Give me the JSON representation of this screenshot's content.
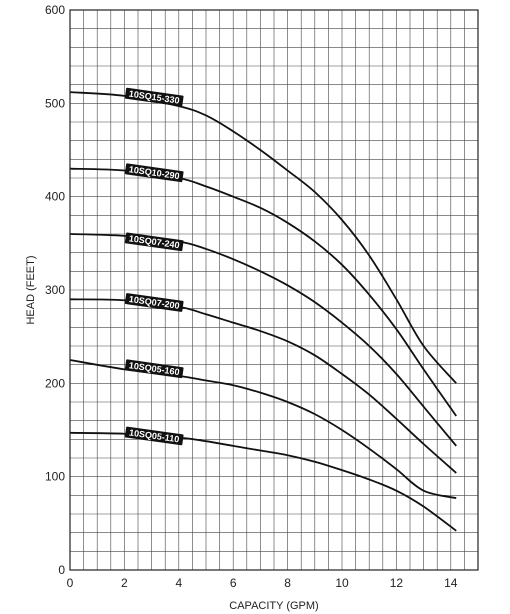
{
  "chart_data": {
    "type": "line",
    "title": "",
    "xlabel": "CAPACITY (GPM)",
    "ylabel": "HEAD (FEET)",
    "xlim": [
      0,
      15
    ],
    "ylim": [
      0,
      600
    ],
    "grid": true,
    "x_ticks": [
      0,
      2,
      4,
      6,
      8,
      10,
      12,
      14
    ],
    "y_ticks": [
      0,
      100,
      200,
      300,
      400,
      500,
      600
    ],
    "series": [
      {
        "name": "10SQ15-330",
        "label_at": [
          2.1,
          508
        ],
        "x": [
          0,
          2,
          4,
          5,
          6,
          7,
          8,
          9,
          10,
          11,
          12,
          13,
          14.2
        ],
        "y": [
          512,
          508,
          497,
          487,
          470,
          450,
          428,
          405,
          375,
          337,
          290,
          240,
          200
        ]
      },
      {
        "name": "10SQ10-290",
        "label_at": [
          2.1,
          427
        ],
        "x": [
          0,
          2,
          4,
          5,
          6,
          7,
          8,
          9,
          10,
          11,
          12,
          13,
          14.2
        ],
        "y": [
          430,
          428,
          420,
          411,
          400,
          388,
          372,
          352,
          327,
          295,
          258,
          215,
          165
        ]
      },
      {
        "name": "10SQ07-240",
        "label_at": [
          2.1,
          353
        ],
        "x": [
          0,
          2,
          4,
          5,
          6,
          7,
          8,
          9,
          10,
          11,
          12,
          13,
          14.2
        ],
        "y": [
          360,
          358,
          352,
          344,
          333,
          320,
          305,
          287,
          265,
          240,
          210,
          175,
          133
        ]
      },
      {
        "name": "10SQ07-200",
        "label_at": [
          2.1,
          288
        ],
        "x": [
          0,
          2,
          4,
          5,
          6,
          7,
          8,
          9,
          10,
          11,
          12,
          13,
          14.2
        ],
        "y": [
          290,
          289,
          282,
          274,
          265,
          256,
          245,
          230,
          210,
          188,
          162,
          135,
          104
        ]
      },
      {
        "name": "10SQ05-160",
        "label_at": [
          2.1,
          217
        ],
        "x": [
          0,
          2,
          4,
          5,
          6,
          7,
          8,
          9,
          10,
          11,
          12,
          13,
          14.2
        ],
        "y": [
          225,
          215,
          208,
          203,
          198,
          190,
          180,
          167,
          150,
          130,
          108,
          85,
          77
        ]
      },
      {
        "name": "10SQ05-110",
        "label_at": [
          2.1,
          145
        ],
        "x": [
          0,
          2,
          4,
          5,
          6,
          7,
          8,
          9,
          10,
          11,
          12,
          13,
          14.2
        ],
        "y": [
          147,
          146,
          142,
          138,
          133,
          128,
          123,
          116,
          107,
          97,
          85,
          68,
          42
        ]
      }
    ]
  }
}
